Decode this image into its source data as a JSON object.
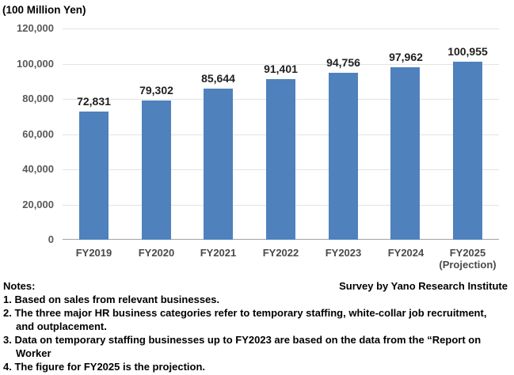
{
  "chart": {
    "unit_label": "(100 Million Yen)"
  },
  "chart_data": {
    "type": "bar",
    "title": "(100 Million Yen)",
    "categories": [
      [
        "FY2019"
      ],
      [
        "FY2020"
      ],
      [
        "FY2021"
      ],
      [
        "FY2022"
      ],
      [
        "FY2023"
      ],
      [
        "FY2024"
      ],
      [
        "FY2025",
        "(Projection)"
      ]
    ],
    "values": [
      72831,
      79302,
      85644,
      91401,
      94756,
      97962,
      100955
    ],
    "value_labels": [
      "72,831",
      "79,302",
      "85,644",
      "91,401",
      "94,756",
      "97,962",
      "100,955"
    ],
    "ylim": [
      0,
      120000
    ],
    "ytick_interval": 20000,
    "ytick_labels": [
      "0",
      "20,000",
      "40,000",
      "60,000",
      "80,000",
      "100,000",
      "120,000"
    ],
    "grid": "horizontal",
    "legend": "none",
    "colors": {
      "bar": "#4F81BD",
      "gridline": "#e3e3e3",
      "axis_line": "#a3a3a3",
      "y_tick_text": "#595959",
      "x_tick_text": "#4a4a4a",
      "value_label_text": "#1f1f1f"
    }
  },
  "footer": {
    "notes_label": "Notes:",
    "survey_credit": "Survey by Yano Research Institute",
    "notes": [
      {
        "lines": [
          "1. Based on sales from relevant businesses."
        ]
      },
      {
        "lines": [
          "2. The three major HR business categories refer to temporary staffing, white-collar job recruitment,",
          "and outplacement."
        ]
      },
      {
        "lines": [
          "3. Data on temporary staffing businesses up to FY2023 are based on the data from the “Report on",
          "Worker"
        ]
      },
      {
        "lines": [
          "4. The figure for FY2025 is the projection."
        ]
      }
    ]
  }
}
